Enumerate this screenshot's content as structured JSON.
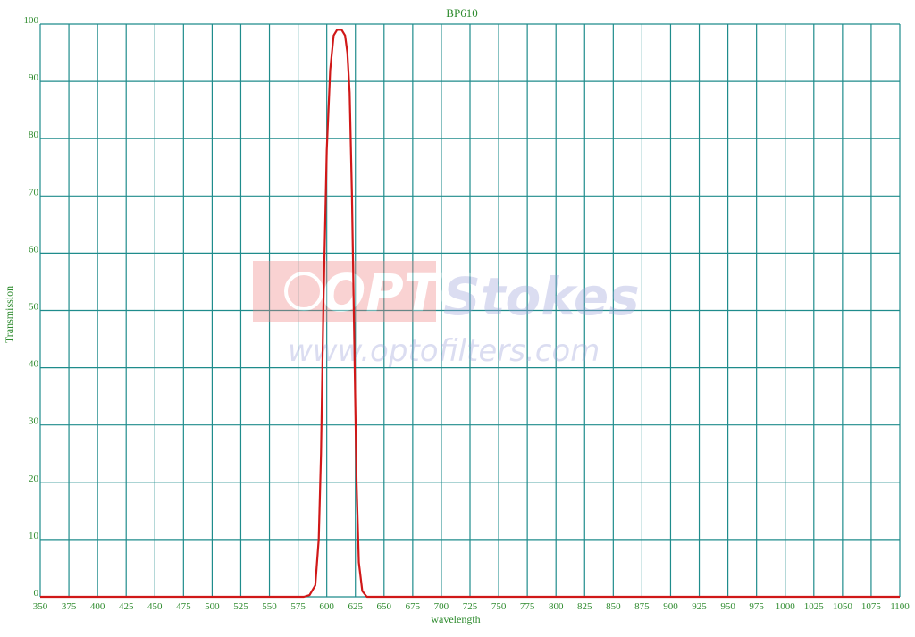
{
  "chart_data": {
    "type": "line",
    "title": "BP610",
    "x_label": "wavelength",
    "y_label": "Transmission",
    "watermark": {
      "logo": "OPTO",
      "brand": "Stokes",
      "url": "www.optofilters.com"
    },
    "x": [
      350,
      580,
      585,
      590,
      593,
      595,
      597,
      600,
      603,
      606,
      609,
      613,
      616,
      618,
      620,
      622,
      624,
      626,
      628,
      631,
      635,
      1100
    ],
    "series": [
      {
        "name": "BP610",
        "color": "#d01818",
        "values": [
          0,
          0,
          0.3,
          2,
          10,
          25,
          50,
          78,
          92,
          98,
          99,
          99,
          98,
          95,
          88,
          70,
          45,
          20,
          6,
          1,
          0,
          0
        ]
      }
    ],
    "xlim": [
      350,
      1100
    ],
    "xticks": [
      350,
      375,
      400,
      425,
      450,
      475,
      500,
      525,
      550,
      575,
      600,
      625,
      650,
      675,
      700,
      725,
      750,
      775,
      800,
      825,
      850,
      875,
      900,
      925,
      950,
      975,
      1000,
      1025,
      1050,
      1075,
      1100
    ],
    "ylim": [
      0,
      100
    ],
    "yticks": [
      0,
      10,
      20,
      30,
      40,
      50,
      60,
      70,
      80,
      90,
      100
    ],
    "grid": true,
    "grid_color": "#1f8c8c"
  }
}
